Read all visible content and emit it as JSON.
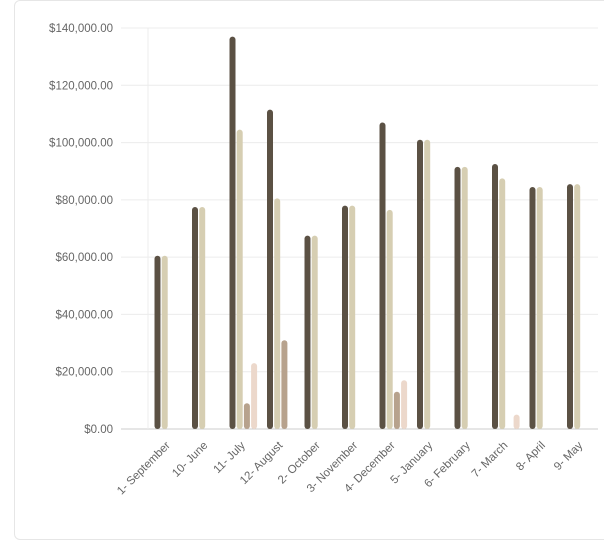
{
  "chart_data": {
    "type": "bar",
    "title": "",
    "xlabel": "",
    "ylabel": "",
    "ylim": [
      0,
      140000
    ],
    "y_ticks": [
      "$0.00",
      "$20,000.00",
      "$40,000.00",
      "$60,000.00",
      "$80,000.00",
      "$100,000.00",
      "$120,000.00",
      "$140,000.00"
    ],
    "y_tick_values": [
      0,
      20000,
      40000,
      60000,
      80000,
      100000,
      120000,
      140000
    ],
    "grid": true,
    "categories": [
      "1- September",
      "10- June",
      "11- July",
      "12- August",
      "2- October",
      "3- November",
      "4- December",
      "5- January",
      "6- February",
      "7- March",
      "8- April",
      "9- May"
    ],
    "series": [
      {
        "color": "#5b5144",
        "values": [
          60500,
          77500,
          137000,
          111500,
          67500,
          78000,
          107000,
          101000,
          91500,
          92500,
          84500,
          85500
        ]
      },
      {
        "color": "#d6ceb2",
        "values": [
          60500,
          77500,
          104500,
          80500,
          67500,
          78000,
          76500,
          101000,
          91500,
          87500,
          84500,
          85500
        ]
      },
      {
        "color": "#b7a28d",
        "values": [
          0,
          0,
          9000,
          31000,
          0,
          0,
          13000,
          0,
          0,
          0,
          0,
          0
        ]
      },
      {
        "color": "#ecd8cb",
        "values": [
          0,
          0,
          23000,
          0,
          0,
          0,
          17000,
          0,
          0,
          5000,
          0,
          0
        ]
      }
    ]
  }
}
